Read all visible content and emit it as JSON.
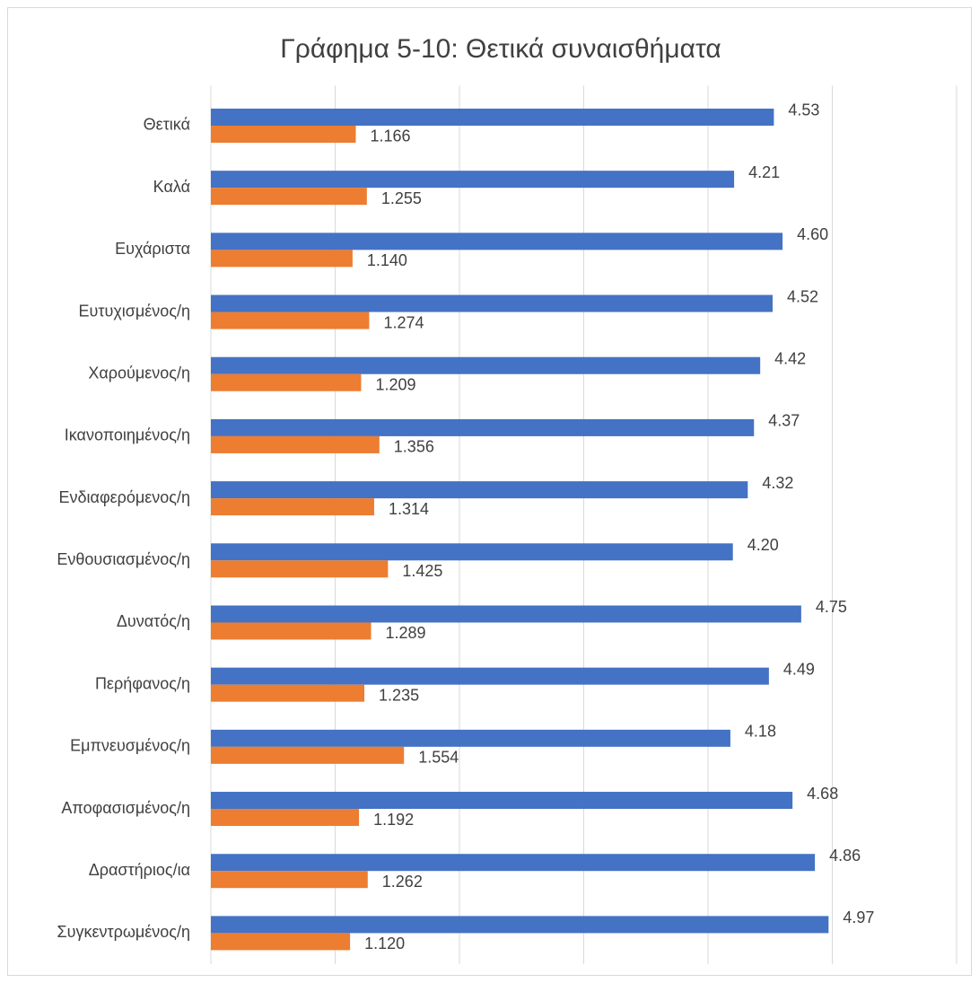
{
  "chart_data": {
    "type": "hbar",
    "title": "Γράφημα 5-10: Θετικά συναισθήματα",
    "categories": [
      "Θετικά",
      "Καλά",
      "Ευχάριστα",
      "Ευτυχισμένος/η",
      "Χαρούμενος/η",
      "Ικανοποιημένος/η",
      "Ενδιαφερόμενος/η",
      "Ενθουσιασμένος/η",
      "Δυνατός/η",
      "Περήφανος/η",
      "Εμπνευσμένος/η",
      "Αποφασισμένος/η",
      "Δραστήριος/ια",
      "Συγκεντρωμένος/η"
    ],
    "series": [
      {
        "color": "#4472c4",
        "values": [
          4.53,
          4.21,
          4.6,
          4.52,
          4.42,
          4.37,
          4.32,
          4.2,
          4.75,
          4.49,
          4.18,
          4.68,
          4.86,
          4.97
        ],
        "value_labels": [
          "4.53",
          "4.21",
          "4.60",
          "4.52",
          "4.42",
          "4.37",
          "4.32",
          "4.20",
          "4.75",
          "4.49",
          "4.18",
          "4.68",
          "4.86",
          "4.97"
        ]
      },
      {
        "color": "#ed7d31",
        "values": [
          1.166,
          1.255,
          1.14,
          1.274,
          1.209,
          1.356,
          1.314,
          1.425,
          1.289,
          1.235,
          1.554,
          1.192,
          1.262,
          1.12
        ],
        "value_labels": [
          "1.166",
          "1.255",
          "1.140",
          "1.274",
          "1.209",
          "1.356",
          "1.314",
          "1.425",
          "1.289",
          "1.235",
          "1.554",
          "1.192",
          "1.262",
          "1.120"
        ]
      }
    ],
    "xlim": [
      0,
      6
    ],
    "xticks": [
      0,
      1,
      2,
      3,
      4,
      5,
      6
    ],
    "grid": true
  }
}
